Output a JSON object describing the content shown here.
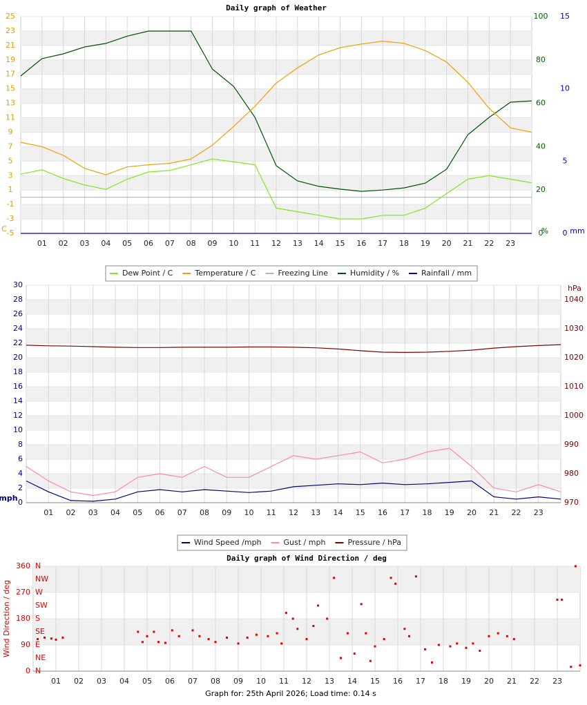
{
  "chart_data": [
    {
      "type": "line",
      "title": "Daily graph of Weather",
      "y_label": "C",
      "y2_label": "%",
      "y3_label": "mm",
      "ytick_color": "#e0a000",
      "y2tick_color": "#006000",
      "y3tick_color": "#0000c0",
      "grid": true,
      "x": [
        0,
        1,
        2,
        3,
        4,
        5,
        6,
        7,
        8,
        9,
        10,
        11,
        12,
        13,
        14,
        15,
        16,
        17,
        18,
        19,
        20,
        21,
        22,
        23,
        24
      ],
      "xlim": [
        0,
        24
      ],
      "xticks": [
        {
          "value": 1,
          "label": "01"
        },
        {
          "value": 2,
          "label": "02"
        },
        {
          "value": 3,
          "label": "03"
        },
        {
          "value": 4,
          "label": "04"
        },
        {
          "value": 5,
          "label": "05"
        },
        {
          "value": 6,
          "label": "06"
        },
        {
          "value": 7,
          "label": "07"
        },
        {
          "value": 8,
          "label": "08"
        },
        {
          "value": 9,
          "label": "09"
        },
        {
          "value": 10,
          "label": "10"
        },
        {
          "value": 11,
          "label": "11"
        },
        {
          "value": 12,
          "label": "12"
        },
        {
          "value": 13,
          "label": "13"
        },
        {
          "value": 14,
          "label": "14"
        },
        {
          "value": 15,
          "label": "15"
        },
        {
          "value": 16,
          "label": "16"
        },
        {
          "value": 17,
          "label": "17"
        },
        {
          "value": 18,
          "label": "18"
        },
        {
          "value": 19,
          "label": "19"
        },
        {
          "value": 20,
          "label": "20"
        },
        {
          "value": 21,
          "label": "21"
        },
        {
          "value": 22,
          "label": "22"
        },
        {
          "value": 23,
          "label": "23"
        }
      ],
      "ylim": [
        -5,
        25
      ],
      "yticks": [
        -5,
        -3,
        -1,
        1,
        3,
        5,
        7,
        9,
        11,
        13,
        15,
        17,
        19,
        21,
        23,
        25
      ],
      "y2lim": [
        0,
        100
      ],
      "y2ticks": [
        0,
        20,
        40,
        60,
        80,
        100
      ],
      "y3lim": [
        0,
        15
      ],
      "y3ticks": [
        0,
        5,
        10,
        15
      ],
      "series": [
        {
          "name": "Dew Point / C",
          "color": "#7ee81c",
          "values": [
            3.2,
            3.8,
            2.6,
            1.7,
            1.1,
            2.5,
            3.5,
            3.7,
            4.5,
            5.3,
            4.9,
            4.5,
            -1.5,
            -2.0,
            -2.5,
            -3.0,
            -3.0,
            -2.5,
            -2.5,
            -1.5,
            0.5,
            2.5,
            3.0,
            2.5,
            2.0
          ]
        },
        {
          "name": "Temperature / C",
          "color": "#f0a000",
          "values": [
            7.6,
            7.0,
            5.8,
            4.0,
            3.1,
            4.2,
            4.5,
            4.7,
            5.3,
            7.2,
            9.8,
            12.6,
            15.8,
            17.9,
            19.7,
            20.7,
            21.2,
            21.6,
            21.3,
            20.3,
            18.7,
            15.9,
            12.3,
            9.6,
            9.0
          ]
        },
        {
          "name": "Freezing Line",
          "color": "#a0b8d0",
          "values": [
            0,
            0,
            0,
            0,
            0,
            0,
            0,
            0,
            0,
            0,
            0,
            0,
            0,
            0,
            0,
            0,
            0,
            0,
            0,
            0,
            0,
            0,
            0,
            0,
            0
          ]
        },
        {
          "name": "Humidity / %",
          "color": "#005000",
          "axis": "y2",
          "values": [
            72.6,
            80.6,
            82.8,
            86,
            87.6,
            91,
            93.3,
            93.3,
            93.3,
            75.8,
            67.8,
            53.5,
            31.2,
            24.2,
            21.7,
            20.4,
            19.4,
            20,
            21,
            23.2,
            29.6,
            45.5,
            53.5,
            60.5,
            61.1
          ]
        },
        {
          "name": "Rainfall / mm",
          "color": "#0000c0",
          "axis": "y3",
          "values": [
            0,
            0,
            0,
            0,
            0,
            0,
            0,
            0,
            0,
            0,
            0,
            0,
            0,
            0,
            0,
            0,
            0,
            0,
            0,
            0,
            0,
            0,
            0,
            0,
            0
          ]
        }
      ]
    },
    {
      "type": "line",
      "y_label": "mph",
      "y2_label": "hPa",
      "ytick_color": "#000080",
      "y2tick_color": "#800000",
      "grid": true,
      "x": [
        0,
        1,
        2,
        3,
        4,
        5,
        6,
        7,
        8,
        9,
        10,
        11,
        12,
        13,
        14,
        15,
        16,
        17,
        18,
        19,
        20,
        21,
        22,
        23,
        24
      ],
      "xlim": [
        0,
        24
      ],
      "xticks": [
        {
          "value": 1,
          "label": "01"
        },
        {
          "value": 2,
          "label": "02"
        },
        {
          "value": 3,
          "label": "03"
        },
        {
          "value": 4,
          "label": "04"
        },
        {
          "value": 5,
          "label": "05"
        },
        {
          "value": 6,
          "label": "06"
        },
        {
          "value": 7,
          "label": "07"
        },
        {
          "value": 8,
          "label": "08"
        },
        {
          "value": 9,
          "label": "09"
        },
        {
          "value": 10,
          "label": "10"
        },
        {
          "value": 11,
          "label": "11"
        },
        {
          "value": 12,
          "label": "12"
        },
        {
          "value": 13,
          "label": "13"
        },
        {
          "value": 14,
          "label": "14"
        },
        {
          "value": 15,
          "label": "15"
        },
        {
          "value": 16,
          "label": "16"
        },
        {
          "value": 17,
          "label": "17"
        },
        {
          "value": 18,
          "label": "18"
        },
        {
          "value": 19,
          "label": "19"
        },
        {
          "value": 20,
          "label": "20"
        },
        {
          "value": 21,
          "label": "21"
        },
        {
          "value": 22,
          "label": "22"
        },
        {
          "value": 23,
          "label": "23"
        }
      ],
      "ylim": [
        0,
        30
      ],
      "yticks": [
        0,
        2,
        4,
        6,
        8,
        10,
        12,
        14,
        16,
        18,
        20,
        22,
        24,
        26,
        28,
        30
      ],
      "y2lim": [
        970,
        1045
      ],
      "y2ticks": [
        970,
        980,
        990,
        1000,
        1010,
        1020,
        1030,
        1040
      ],
      "series": [
        {
          "name": "Wind Speed /mph",
          "color": "#000080",
          "values": [
            3,
            1.5,
            0.3,
            0.2,
            0.5,
            1.5,
            1.8,
            1.5,
            1.8,
            1.6,
            1.4,
            1.6,
            2.2,
            2.4,
            2.6,
            2.5,
            2.7,
            2.5,
            2.6,
            2.8,
            3.0,
            0.8,
            0.5,
            0.8,
            0.5
          ]
        },
        {
          "name": "Gust / mph",
          "color": "#ff88aa",
          "values": [
            5,
            3,
            1.5,
            1,
            1.5,
            3.5,
            4,
            3.5,
            5,
            3.5,
            3.5,
            5,
            6.5,
            6,
            6.5,
            7,
            5.5,
            6,
            7,
            7.5,
            5,
            2,
            1.5,
            2.5,
            1.5
          ]
        },
        {
          "name": "Pressure / hPa",
          "color": "#800000",
          "axis": "y2",
          "values": [
            1024.3,
            1024.1,
            1024,
            1023.8,
            1023.6,
            1023.5,
            1023.5,
            1023.6,
            1023.6,
            1023.6,
            1023.7,
            1023.7,
            1023.6,
            1023.4,
            1023.0,
            1022.4,
            1021.9,
            1021.8,
            1021.9,
            1022.2,
            1022.6,
            1023.3,
            1023.8,
            1024.2,
            1024.5
          ]
        }
      ]
    },
    {
      "type": "scatter",
      "title": "Daily graph of Wind Direction / deg",
      "y_label": "Wind Direction / deg",
      "ytick_color": "#e00000",
      "y2tick_color": "#e00000",
      "grid": true,
      "x": [
        0.2,
        0.5,
        0.8,
        1.0,
        1.3,
        4.6,
        4.8,
        5.0,
        5.3,
        5.5,
        5.8,
        6.1,
        6.4,
        7.0,
        7.3,
        7.7,
        8.0,
        8.5,
        9.0,
        9.4,
        9.8,
        10.3,
        10.7,
        10.9,
        11.1,
        11.4,
        11.6,
        12.0,
        12.3,
        12.5,
        12.9,
        13.2,
        13.5,
        13.8,
        14.1,
        14.4,
        14.6,
        14.8,
        15.0,
        15.4,
        15.7,
        15.9,
        16.3,
        16.5,
        16.8,
        17.2,
        17.5,
        17.8,
        18.3,
        18.6,
        19.0,
        19.3,
        19.6,
        20.0,
        20.4,
        20.8,
        21.1,
        23.0,
        23.2,
        23.6,
        23.8,
        24.0
      ],
      "xlim": [
        0,
        24
      ],
      "xticks": [
        {
          "value": 1,
          "label": "01"
        },
        {
          "value": 2,
          "label": "02"
        },
        {
          "value": 3,
          "label": "03"
        },
        {
          "value": 4,
          "label": "04"
        },
        {
          "value": 5,
          "label": "05"
        },
        {
          "value": 6,
          "label": "06"
        },
        {
          "value": 7,
          "label": "07"
        },
        {
          "value": 8,
          "label": "08"
        },
        {
          "value": 9,
          "label": "09"
        },
        {
          "value": 10,
          "label": "10"
        },
        {
          "value": 11,
          "label": "11"
        },
        {
          "value": 12,
          "label": "12"
        },
        {
          "value": 13,
          "label": "13"
        },
        {
          "value": 14,
          "label": "14"
        },
        {
          "value": 15,
          "label": "15"
        },
        {
          "value": 16,
          "label": "16"
        },
        {
          "value": 17,
          "label": "17"
        },
        {
          "value": 18,
          "label": "18"
        },
        {
          "value": 19,
          "label": "19"
        },
        {
          "value": 20,
          "label": "20"
        },
        {
          "value": 21,
          "label": "21"
        },
        {
          "value": 22,
          "label": "22"
        },
        {
          "value": 23,
          "label": "23"
        }
      ],
      "ylim": [
        0,
        360
      ],
      "yticks": [
        0,
        90,
        180,
        270,
        360
      ],
      "y2lim": [
        0,
        360
      ],
      "y2ticks": [
        {
          "value": 0,
          "label": "N"
        },
        {
          "value": 45,
          "label": "NE"
        },
        {
          "value": 90,
          "label": "E"
        },
        {
          "value": 135,
          "label": "SE"
        },
        {
          "value": 180,
          "label": "S"
        },
        {
          "value": 225,
          "label": "SW"
        },
        {
          "value": 270,
          "label": "W"
        },
        {
          "value": 315,
          "label": "NW"
        },
        {
          "value": 360,
          "label": "N"
        }
      ],
      "series": [
        {
          "color": "#e00000",
          "values": [
            110,
            115,
            112,
            108,
            115,
            135,
            100,
            120,
            135,
            100,
            97,
            140,
            120,
            140,
            120,
            110,
            100,
            115,
            95,
            115,
            125,
            120,
            130,
            95,
            200,
            180,
            145,
            110,
            155,
            225,
            180,
            320,
            45,
            130,
            60,
            230,
            130,
            35,
            85,
            110,
            320,
            300,
            145,
            120,
            325,
            75,
            30,
            90,
            85,
            95,
            80,
            95,
            70,
            120,
            130,
            120,
            110,
            245,
            245,
            15,
            360,
            20
          ]
        }
      ]
    }
  ],
  "footer": "Graph for: 25th April 2026; Load time: 0.14 s"
}
